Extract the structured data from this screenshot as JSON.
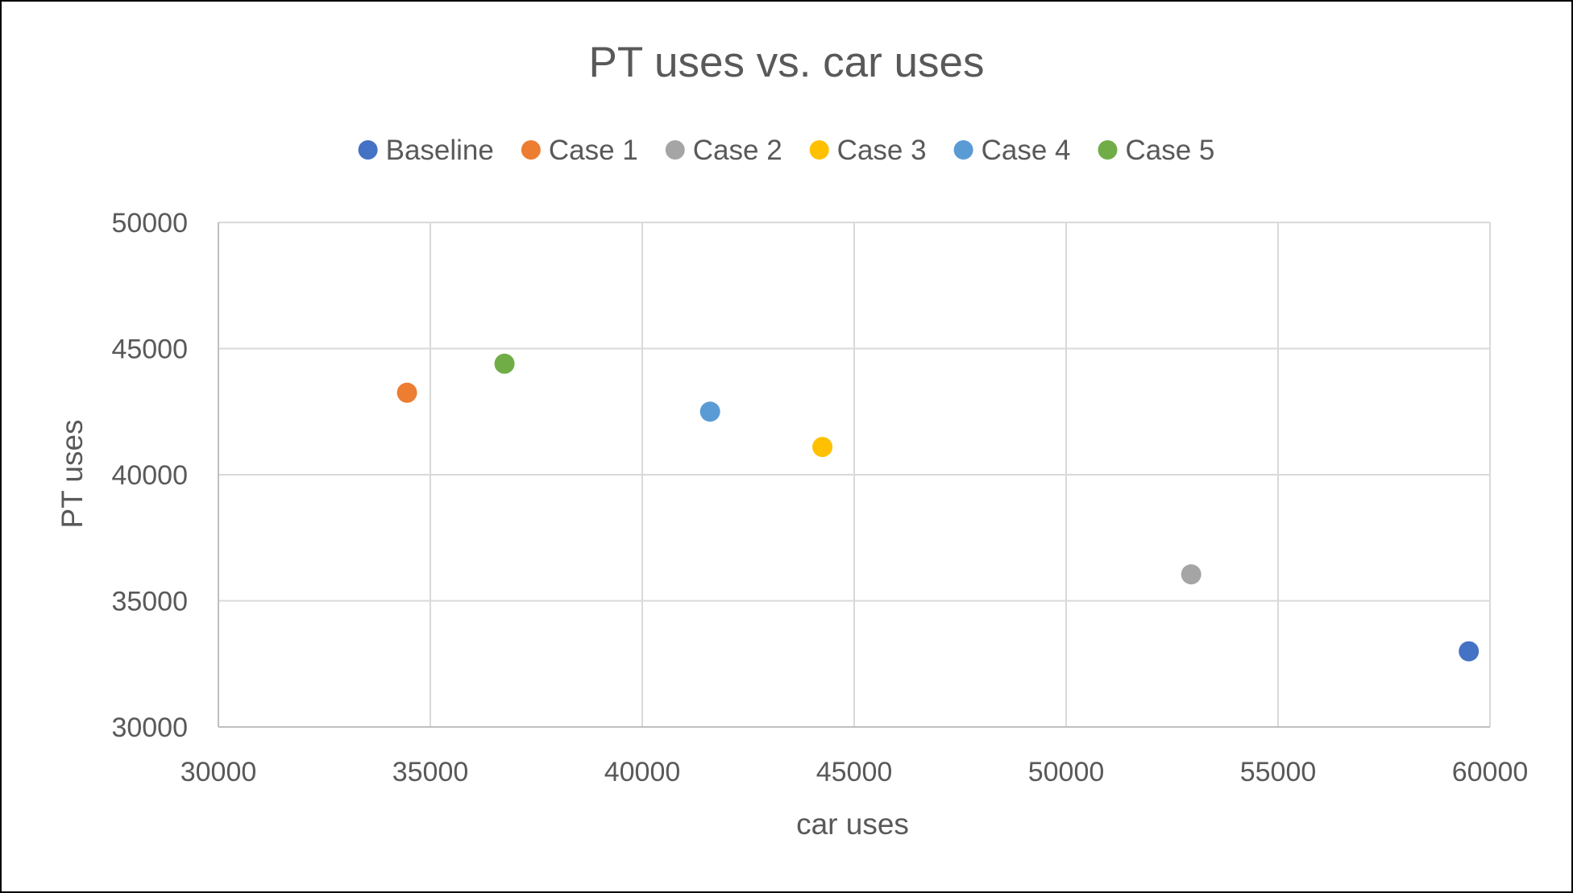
{
  "chart_data": {
    "type": "scatter",
    "title": "PT uses vs. car uses",
    "xlabel": "car uses",
    "ylabel": "PT uses",
    "xlim": [
      30000,
      60000
    ],
    "ylim": [
      30000,
      50000
    ],
    "x_ticks": [
      30000,
      35000,
      40000,
      45000,
      50000,
      55000,
      60000
    ],
    "y_ticks": [
      30000,
      35000,
      40000,
      45000,
      50000
    ],
    "grid": true,
    "legend_position": "top",
    "series": [
      {
        "name": "Baseline",
        "color": "#4472c4",
        "points": [
          {
            "x": 59500,
            "y": 33000
          }
        ]
      },
      {
        "name": "Case 1",
        "color": "#ed7d31",
        "points": [
          {
            "x": 34450,
            "y": 43250
          }
        ]
      },
      {
        "name": "Case 2",
        "color": "#a5a5a5",
        "points": [
          {
            "x": 52950,
            "y": 36050
          }
        ]
      },
      {
        "name": "Case 3",
        "color": "#ffc000",
        "points": [
          {
            "x": 44250,
            "y": 41100
          }
        ]
      },
      {
        "name": "Case 4",
        "color": "#5b9bd5",
        "points": [
          {
            "x": 41600,
            "y": 42500
          }
        ]
      },
      {
        "name": "Case 5",
        "color": "#70ad47",
        "points": [
          {
            "x": 36750,
            "y": 44400
          }
        ]
      }
    ]
  }
}
